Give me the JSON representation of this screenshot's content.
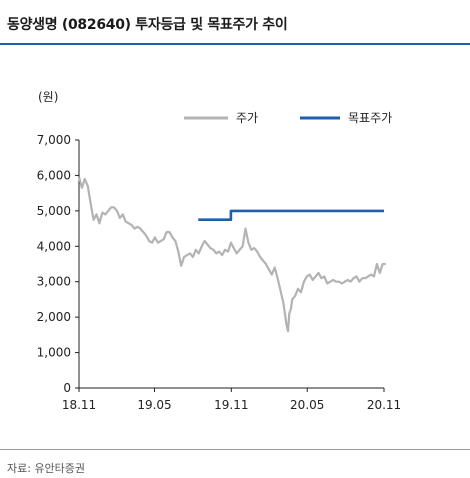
{
  "header": {
    "title": "동양생명 (082640) 투자등급 및 목표주가 추이"
  },
  "footer": {
    "source": "자료: 유안타증권"
  },
  "chart_data": {
    "type": "line",
    "ylabel": "(원)",
    "ylim": [
      0,
      7000
    ],
    "yticks": [
      "0",
      "1,000",
      "2,000",
      "3,000",
      "4,000",
      "5,000",
      "6,000",
      "7,000"
    ],
    "ytick_values": [
      0,
      1000,
      2000,
      3000,
      4000,
      5000,
      6000,
      7000
    ],
    "xticks": [
      "18.11",
      "19.05",
      "19.11",
      "20.05",
      "20.11"
    ],
    "xtick_values": [
      "2018-11-01",
      "2019-05-01",
      "2019-11-01",
      "2020-05-01",
      "2020-11-01"
    ],
    "xlim": [
      "2018-11-01",
      "2020-11-01"
    ],
    "grid": false,
    "legend_position": "top-right",
    "series": [
      {
        "name": "주가",
        "color": "#b3b3b3",
        "x": [
          "2018-11-01",
          "2018-11-08",
          "2018-11-15",
          "2018-11-22",
          "2018-11-29",
          "2018-12-06",
          "2018-12-13",
          "2018-12-20",
          "2018-12-27",
          "2019-01-03",
          "2019-01-10",
          "2019-01-17",
          "2019-01-24",
          "2019-01-31",
          "2019-02-07",
          "2019-02-14",
          "2019-02-21",
          "2019-02-28",
          "2019-03-07",
          "2019-03-14",
          "2019-03-21",
          "2019-03-28",
          "2019-04-04",
          "2019-04-11",
          "2019-04-18",
          "2019-04-25",
          "2019-05-02",
          "2019-05-09",
          "2019-05-16",
          "2019-05-23",
          "2019-05-30",
          "2019-06-06",
          "2019-06-13",
          "2019-06-20",
          "2019-06-27",
          "2019-07-04",
          "2019-07-11",
          "2019-07-18",
          "2019-07-25",
          "2019-08-01",
          "2019-08-08",
          "2019-08-15",
          "2019-08-22",
          "2019-08-29",
          "2019-09-05",
          "2019-09-12",
          "2019-09-19",
          "2019-09-26",
          "2019-10-03",
          "2019-10-10",
          "2019-10-17",
          "2019-10-24",
          "2019-10-31",
          "2019-11-07",
          "2019-11-14",
          "2019-11-21",
          "2019-11-28",
          "2019-12-05",
          "2019-12-12",
          "2019-12-19",
          "2019-12-26",
          "2020-01-02",
          "2020-01-09",
          "2020-01-16",
          "2020-01-23",
          "2020-01-30",
          "2020-02-06",
          "2020-02-13",
          "2020-02-20",
          "2020-02-27",
          "2020-03-05",
          "2020-03-12",
          "2020-03-16",
          "2020-03-19",
          "2020-03-23",
          "2020-03-26",
          "2020-04-02",
          "2020-04-09",
          "2020-04-16",
          "2020-04-23",
          "2020-04-30",
          "2020-05-07",
          "2020-05-14",
          "2020-05-21",
          "2020-05-28",
          "2020-06-04",
          "2020-06-11",
          "2020-06-18",
          "2020-06-25",
          "2020-07-02",
          "2020-07-09",
          "2020-07-16",
          "2020-07-23",
          "2020-07-30",
          "2020-08-06",
          "2020-08-13",
          "2020-08-20",
          "2020-08-27",
          "2020-09-03",
          "2020-09-10",
          "2020-09-17",
          "2020-09-24",
          "2020-10-01",
          "2020-10-08",
          "2020-10-15",
          "2020-10-22",
          "2020-10-29",
          "2020-11-05"
        ],
        "y": [
          5950,
          5650,
          5900,
          5700,
          5200,
          4750,
          4900,
          4650,
          4950,
          4900,
          5000,
          5100,
          5100,
          5000,
          4800,
          4900,
          4700,
          4650,
          4600,
          4500,
          4550,
          4500,
          4400,
          4300,
          4150,
          4100,
          4250,
          4100,
          4150,
          4200,
          4400,
          4400,
          4250,
          4150,
          3850,
          3450,
          3700,
          3750,
          3800,
          3700,
          3900,
          3800,
          4000,
          4150,
          4050,
          3950,
          3900,
          3800,
          3850,
          3750,
          3900,
          3850,
          4100,
          3950,
          3800,
          3900,
          4000,
          4500,
          4100,
          3900,
          3950,
          3850,
          3700,
          3600,
          3500,
          3350,
          3200,
          3400,
          3100,
          2750,
          2400,
          1800,
          1600,
          2100,
          2250,
          2500,
          2600,
          2800,
          2700,
          3000,
          3150,
          3200,
          3050,
          3150,
          3250,
          3100,
          3150,
          2950,
          3000,
          3050,
          3000,
          3000,
          2950,
          3000,
          3050,
          3000,
          3100,
          3150,
          3000,
          3100,
          3100,
          3150,
          3200,
          3150,
          3500,
          3250,
          3500,
          3500
        ]
      },
      {
        "name": "목표주가",
        "color": "#1f5fa8",
        "x": [
          "2019-08-14",
          "2019-10-31",
          "2019-10-31",
          "2020-11-01"
        ],
        "y": [
          4750,
          4750,
          5000,
          5000
        ]
      }
    ]
  }
}
